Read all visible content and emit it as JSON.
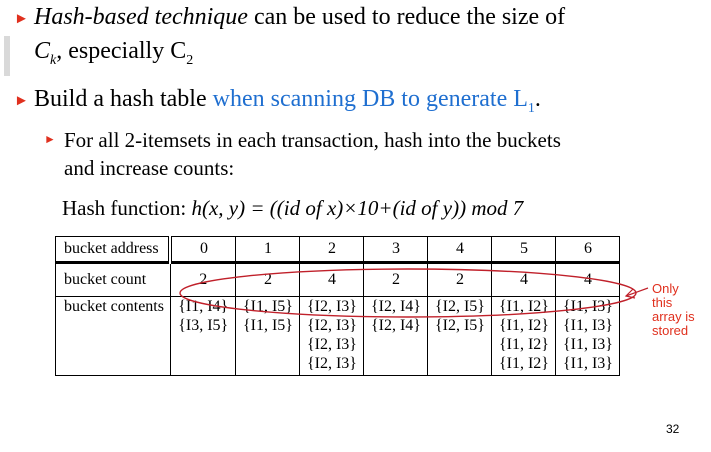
{
  "bullets": {
    "b1_italic": "Hash-based technique",
    "b1_rest": " can be used to reduce the size of",
    "b1_line2_pre": "C",
    "b1_line2_sub1": "k",
    "b1_line2_mid": ", especially C",
    "b1_line2_sub2": "2",
    "b2_pre": "Build a hash table ",
    "b2_blue": "when scanning DB to generate L",
    "b2_sub": "1",
    "b2_end": ".",
    "sub1_line1": "For all 2-itemsets in each transaction, hash into the buckets",
    "sub1_line2": "and increase counts:"
  },
  "hash_function": {
    "label": "Hash function: ",
    "formula": "h(x, y) = ((id of x)×10+(id of y)) mod 7"
  },
  "table": {
    "address_label": "bucket address",
    "count_label": "bucket count",
    "contents_label": "bucket contents",
    "addresses": [
      "0",
      "1",
      "2",
      "3",
      "4",
      "5",
      "6"
    ],
    "counts": [
      "2",
      "2",
      "4",
      "2",
      "2",
      "4",
      "4"
    ],
    "contents": [
      [
        "{I1, I4}",
        "{I3, I5}"
      ],
      [
        "{I1, I5}",
        "{I1, I5}"
      ],
      [
        "{I2, I3}",
        "{I2, I3}",
        "{I2, I3}",
        "{I2, I3}"
      ],
      [
        "{I2, I4}",
        "{I2, I4}"
      ],
      [
        "{I2, I5}",
        "{I2, I5}"
      ],
      [
        "{I1, I2}",
        "{I1, I2}",
        "{I1, I2}",
        "{I1, I2}"
      ],
      [
        "{I1, I3}",
        "{I1, I3}",
        "{I1, I3}",
        "{I1, I3}"
      ]
    ]
  },
  "annotation": {
    "line1": "Only",
    "line2": "this",
    "line3": "array is",
    "line4": "stored",
    "color": "#e0301e"
  },
  "page_number": "32"
}
